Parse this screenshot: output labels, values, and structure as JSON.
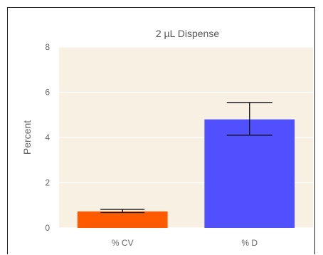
{
  "chart_data": {
    "type": "bar",
    "title": "2 µL Dispense",
    "xlabel": "",
    "ylabel": "Percent",
    "categories": [
      "% CV",
      "% D"
    ],
    "values": [
      0.73,
      4.8
    ],
    "error_low": [
      0.68,
      4.1
    ],
    "error_high": [
      0.82,
      5.55
    ],
    "ylim": [
      0,
      8
    ],
    "yticks": [
      0,
      2,
      4,
      6,
      8
    ],
    "grid": true,
    "colors": {
      "bars": [
        "#ff5a00",
        "#5050ff"
      ],
      "plot_background": "#f7f0e3",
      "grid": "#ffffff",
      "error_bar": "#111111"
    }
  }
}
